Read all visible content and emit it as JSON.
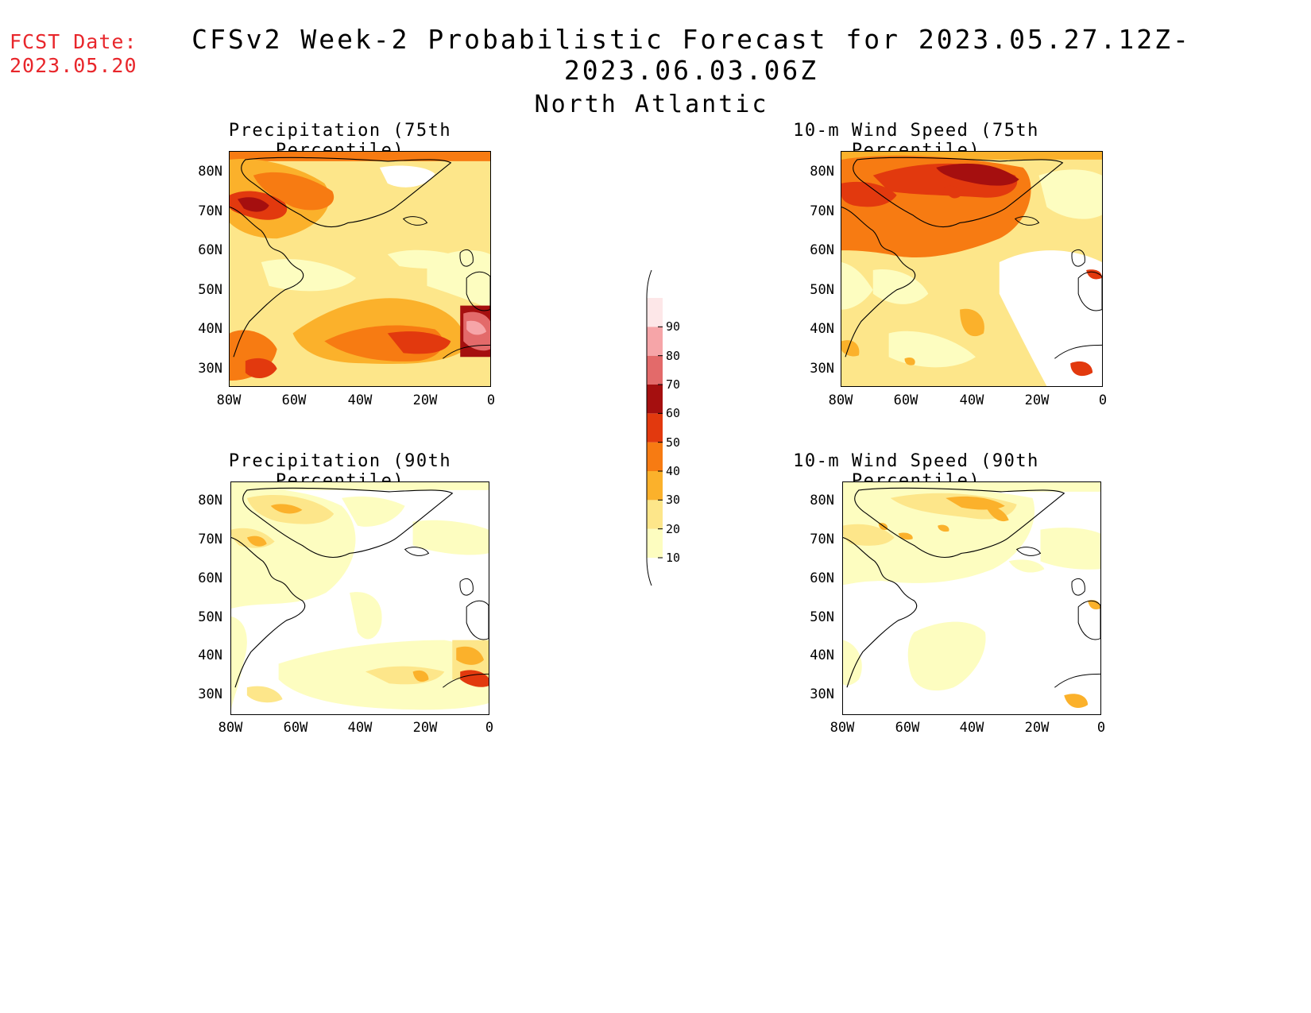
{
  "header": {
    "fcst_label": "FCST Date:",
    "fcst_date": "2023.05.20",
    "title": "CFSv2 Week-2 Probabilistic Forecast for 2023.05.27.12Z-2023.06.03.06Z",
    "subtitle": "North Atlantic"
  },
  "panels": [
    {
      "id": "precip75",
      "title": "Precipitation (75th Percentile)"
    },
    {
      "id": "wind75",
      "title": "10-m Wind Speed (75th Percentile)"
    },
    {
      "id": "precip90",
      "title": "Precipitation (90th Percentile)"
    },
    {
      "id": "wind90",
      "title": "10-m Wind Speed (90th Percentile)"
    }
  ],
  "axes": {
    "lat_labels": [
      "80N",
      "70N",
      "60N",
      "50N",
      "40N",
      "30N"
    ],
    "lon_labels": [
      "80W",
      "60W",
      "40W",
      "20W",
      "0"
    ]
  },
  "colorbar": {
    "levels": [
      "10",
      "20",
      "30",
      "40",
      "50",
      "60",
      "70",
      "80",
      "90"
    ],
    "colors": [
      "#fdfdc0",
      "#fde68a",
      "#fbb12b",
      "#f77b12",
      "#e2390e",
      "#a50f0f",
      "#e36a6a",
      "#f6a5a8",
      "#fde7e8"
    ]
  }
}
